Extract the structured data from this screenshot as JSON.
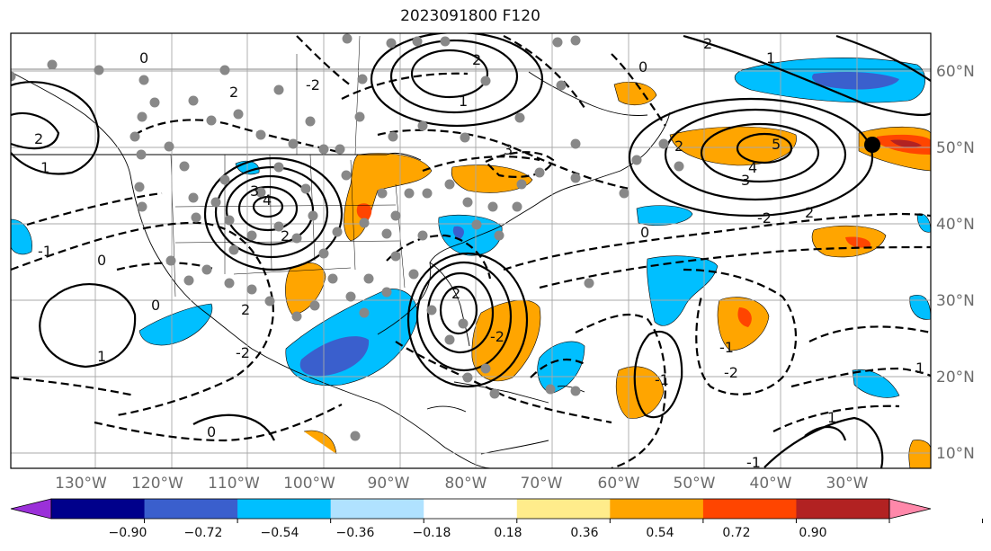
{
  "title": "2023091800 F120",
  "map": {
    "projection": "cylindrical",
    "lon_range": [
      -140,
      -20
    ],
    "lat_range": [
      7,
      64
    ],
    "lat_labels": [
      "10°N",
      "20°N",
      "30°N",
      "40°N",
      "50°N",
      "60°N"
    ],
    "lon_labels": [
      "130°W",
      "120°W",
      "110°W",
      "100°W",
      "90°W",
      "80°W",
      "70°W",
      "60°W",
      "50°W",
      "40°W",
      "30°W"
    ],
    "gridlines": true,
    "overlays": [
      "coastlines",
      "country-borders",
      "us-state-borders",
      "contour-lines",
      "shaded-anomaly",
      "station-dots",
      "tropical-cyclone-marker"
    ]
  },
  "contour_labels": [
    "2",
    "2",
    "1",
    "0",
    "-1",
    "4",
    "3",
    "2",
    "-2",
    "0",
    "1",
    "2",
    "3",
    "2",
    "1",
    "2",
    "5",
    "4",
    "3",
    "2",
    "1",
    "0",
    "-2",
    "2",
    "-1",
    "-1",
    "-2",
    "1",
    "0",
    "1",
    "-1",
    "0",
    "2",
    "0",
    "-2",
    "-2"
  ],
  "colorbar": {
    "labels": [
      "−0.90",
      "−0.72",
      "−0.54",
      "−0.36",
      "−0.18",
      "0.18",
      "0.36",
      "0.54",
      "0.72",
      "0.90"
    ],
    "colors": [
      "#9b30d9",
      "#00008b",
      "#3a5fcd",
      "#00bfff",
      "#b0e2ff",
      "#ffffff",
      "#ffec8b",
      "#ffa500",
      "#ff4500",
      "#b22222",
      "#ff88aa"
    ],
    "extend": "both"
  },
  "colors": {
    "positive_shading": "#ffa500",
    "strong_positive": "#ff4500",
    "negative_shading": "#00bfff",
    "strong_negative": "#3a5fcd",
    "stations": "#888888",
    "contours": "#000000"
  }
}
